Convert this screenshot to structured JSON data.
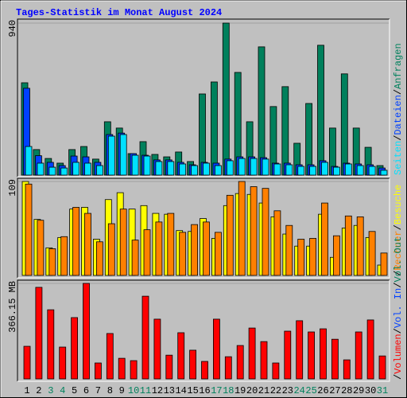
{
  "title": "Tages-Statistik im Monat August 2024",
  "legend_separator": "/",
  "chart_data": [
    {
      "type": "bar",
      "legend_order": "reversed",
      "categories": [
        "1",
        "2",
        "3",
        "4",
        "5",
        "6",
        "7",
        "8",
        "9",
        "10",
        "11",
        "12",
        "13",
        "14",
        "15",
        "16",
        "17",
        "18",
        "19",
        "20",
        "21",
        "22",
        "23",
        "24",
        "25",
        "26",
        "27",
        "28",
        "29",
        "30",
        "31"
      ],
      "category_colors": [
        "#000000",
        "#000000",
        "#00805c",
        "#00805c",
        "#000000",
        "#000000",
        "#000000",
        "#000000",
        "#000000",
        "#00805c",
        "#00805c",
        "#000000",
        "#000000",
        "#000000",
        "#000000",
        "#000000",
        "#00805c",
        "#00805c",
        "#000000",
        "#000000",
        "#000000",
        "#000000",
        "#000000",
        "#00805c",
        "#00805c",
        "#000000",
        "#000000",
        "#000000",
        "#000000",
        "#000000",
        "#00805c"
      ],
      "ylim": [
        0,
        940
      ],
      "yticks": [
        940
      ],
      "series": [
        {
          "name": "Anfragen",
          "color": "#00805c",
          "values": [
            571,
            158,
            103,
            74,
            158,
            177,
            99,
            330,
            291,
            133,
            207,
            128,
            113,
            143,
            84,
            502,
            576,
            940,
            635,
            330,
            793,
            424,
            547,
            197,
            443,
            803,
            291,
            626,
            291,
            172,
            59
          ]
        },
        {
          "name": "Dateien",
          "color": "#0040ff",
          "values": [
            537,
            120,
            79,
            59,
            118,
            113,
            79,
            251,
            260,
            133,
            123,
            94,
            94,
            79,
            64,
            79,
            74,
            99,
            113,
            113,
            108,
            74,
            74,
            64,
            64,
            89,
            54,
            74,
            69,
            64,
            44
          ]
        },
        {
          "name": "Seiten",
          "color": "#00e0ff",
          "values": [
            177,
            74,
            49,
            44,
            79,
            74,
            59,
            241,
            251,
            123,
            118,
            84,
            84,
            69,
            59,
            74,
            59,
            89,
            103,
            103,
            99,
            69,
            64,
            54,
            54,
            79,
            49,
            69,
            59,
            54,
            30
          ]
        }
      ]
    },
    {
      "type": "bar",
      "legend_order": "reversed",
      "ylim": [
        0,
        109
      ],
      "yticks": [
        109
      ],
      "series": [
        {
          "name": "Besuche",
          "color": "#ffff00",
          "values": [
            109,
            65,
            32,
            44,
            77,
            79,
            42,
            88,
            96,
            77,
            81,
            72,
            71,
            52,
            51,
            66,
            43,
            81,
            95,
            94,
            84,
            68,
            48,
            34,
            34,
            71,
            21,
            55,
            58,
            44,
            12
          ]
        },
        {
          "name": "Rechner",
          "color": "#ff8000",
          "values": [
            106,
            64,
            31,
            45,
            79,
            72,
            39,
            60,
            77,
            41,
            53,
            62,
            72,
            50,
            59,
            62,
            50,
            93,
            109,
            103,
            101,
            75,
            58,
            42,
            43,
            84,
            46,
            69,
            68,
            51,
            26
          ]
        }
      ]
    },
    {
      "type": "bar",
      "legend_order": "forward",
      "ylim": [
        0,
        366.15
      ],
      "yticks": [
        {
          "value": 366.15,
          "label": "366.15 MB"
        }
      ],
      "series": [
        {
          "name": "Volumen",
          "color": "#ff0000",
          "values": [
            125,
            351,
            265,
            122,
            235,
            366.15,
            61,
            174,
            79,
            70,
            317,
            229,
            91,
            177,
            110,
            67,
            229,
            85,
            128,
            195,
            143,
            61,
            183,
            223,
            180,
            192,
            152,
            73,
            180,
            226,
            88
          ]
        }
      ],
      "legend_more": [
        {
          "name": "Vol. In",
          "color": "#0040ff"
        },
        {
          "name": "Vol. Out",
          "color": "#00805c"
        }
      ]
    }
  ]
}
